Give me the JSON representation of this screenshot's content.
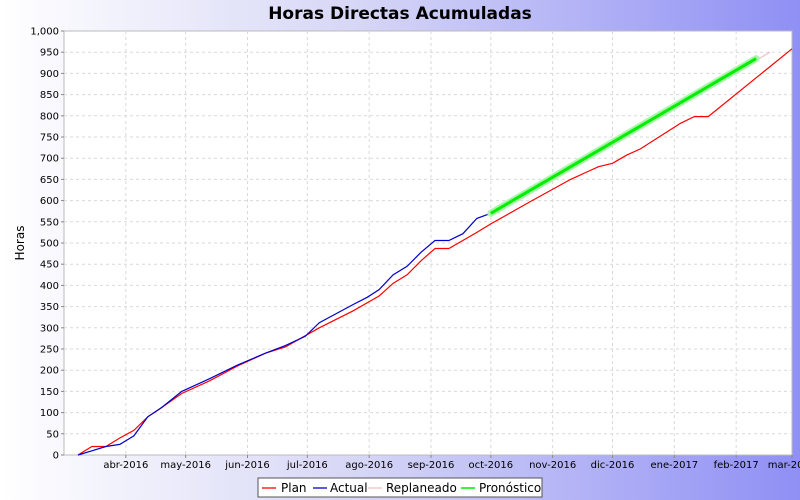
{
  "chart_data": {
    "type": "line",
    "title": "Horas Directas Acumuladas",
    "xlabel": "",
    "ylabel": "Horas",
    "ylim": [
      0,
      1000
    ],
    "yticks": [
      "0",
      "50",
      "100",
      "150",
      "200",
      "250",
      "300",
      "350",
      "400",
      "450",
      "500",
      "550",
      "600",
      "650",
      "700",
      "750",
      "800",
      "850",
      "900",
      "950",
      "1,000"
    ],
    "xlim": [
      "2016-03-01",
      "2017-03-01"
    ],
    "xticks": [
      {
        "label": "abr-2016",
        "date": "2016-04-01"
      },
      {
        "label": "may-2016",
        "date": "2016-05-01"
      },
      {
        "label": "jun-2016",
        "date": "2016-06-01"
      },
      {
        "label": "jul-2016",
        "date": "2016-07-01"
      },
      {
        "label": "ago-2016",
        "date": "2016-08-01"
      },
      {
        "label": "sep-2016",
        "date": "2016-09-01"
      },
      {
        "label": "oct-2016",
        "date": "2016-10-01"
      },
      {
        "label": "nov-2016",
        "date": "2016-11-01"
      },
      {
        "label": "dic-2016",
        "date": "2016-12-01"
      },
      {
        "label": "ene-2017",
        "date": "2017-01-01"
      },
      {
        "label": "feb-2017",
        "date": "2017-02-01"
      },
      {
        "label": "mar-2017",
        "date": "2017-03-01"
      }
    ],
    "grid": true,
    "legend_position": "bottom",
    "series": [
      {
        "name": "Plan",
        "color": "#ff0000",
        "points": [
          [
            "2016-03-08",
            0
          ],
          [
            "2016-03-15",
            20
          ],
          [
            "2016-03-22",
            20
          ],
          [
            "2016-03-29",
            40
          ],
          [
            "2016-04-05",
            58
          ],
          [
            "2016-04-12",
            90
          ],
          [
            "2016-04-19",
            112
          ],
          [
            "2016-04-29",
            145
          ],
          [
            "2016-05-13",
            175
          ],
          [
            "2016-05-27",
            210
          ],
          [
            "2016-06-10",
            240
          ],
          [
            "2016-06-20",
            255
          ],
          [
            "2016-07-07",
            300
          ],
          [
            "2016-07-24",
            340
          ],
          [
            "2016-08-06",
            375
          ],
          [
            "2016-08-13",
            405
          ],
          [
            "2016-08-20",
            425
          ],
          [
            "2016-08-27",
            458
          ],
          [
            "2016-09-03",
            487
          ],
          [
            "2016-09-10",
            487
          ],
          [
            "2016-09-24",
            525
          ],
          [
            "2016-10-01",
            545
          ],
          [
            "2016-10-21",
            598
          ],
          [
            "2016-11-10",
            650
          ],
          [
            "2016-11-17",
            665
          ],
          [
            "2016-11-24",
            680
          ],
          [
            "2016-12-01",
            688
          ],
          [
            "2016-12-08",
            707
          ],
          [
            "2016-12-15",
            722
          ],
          [
            "2017-01-04",
            782
          ],
          [
            "2017-01-11",
            798
          ],
          [
            "2017-01-18",
            798
          ],
          [
            "2017-03-01",
            958
          ]
        ]
      },
      {
        "name": "Actual",
        "color": "#0000cc",
        "points": [
          [
            "2016-03-08",
            0
          ],
          [
            "2016-03-15",
            10
          ],
          [
            "2016-03-22",
            20
          ],
          [
            "2016-03-29",
            25
          ],
          [
            "2016-04-05",
            45
          ],
          [
            "2016-04-12",
            90
          ],
          [
            "2016-04-19",
            112
          ],
          [
            "2016-04-29",
            150
          ],
          [
            "2016-05-13",
            180
          ],
          [
            "2016-05-27",
            212
          ],
          [
            "2016-06-10",
            240
          ],
          [
            "2016-06-20",
            258
          ],
          [
            "2016-06-30",
            280
          ],
          [
            "2016-07-07",
            312
          ],
          [
            "2016-07-24",
            355
          ],
          [
            "2016-07-31",
            372
          ],
          [
            "2016-08-06",
            390
          ],
          [
            "2016-08-13",
            425
          ],
          [
            "2016-08-20",
            445
          ],
          [
            "2016-08-27",
            478
          ],
          [
            "2016-09-03",
            506
          ],
          [
            "2016-09-10",
            506
          ],
          [
            "2016-09-17",
            522
          ],
          [
            "2016-09-24",
            558
          ],
          [
            "2016-10-01",
            570
          ]
        ]
      },
      {
        "name": "Replaneado",
        "color": "#f2c4c4",
        "points": [
          [
            "2016-10-01",
            570
          ],
          [
            "2017-02-18",
            950
          ]
        ]
      },
      {
        "name": "Pronóstico",
        "color": "#00ee00",
        "points": [
          [
            "2016-10-01",
            570
          ],
          [
            "2017-02-11",
            935
          ]
        ]
      }
    ]
  }
}
